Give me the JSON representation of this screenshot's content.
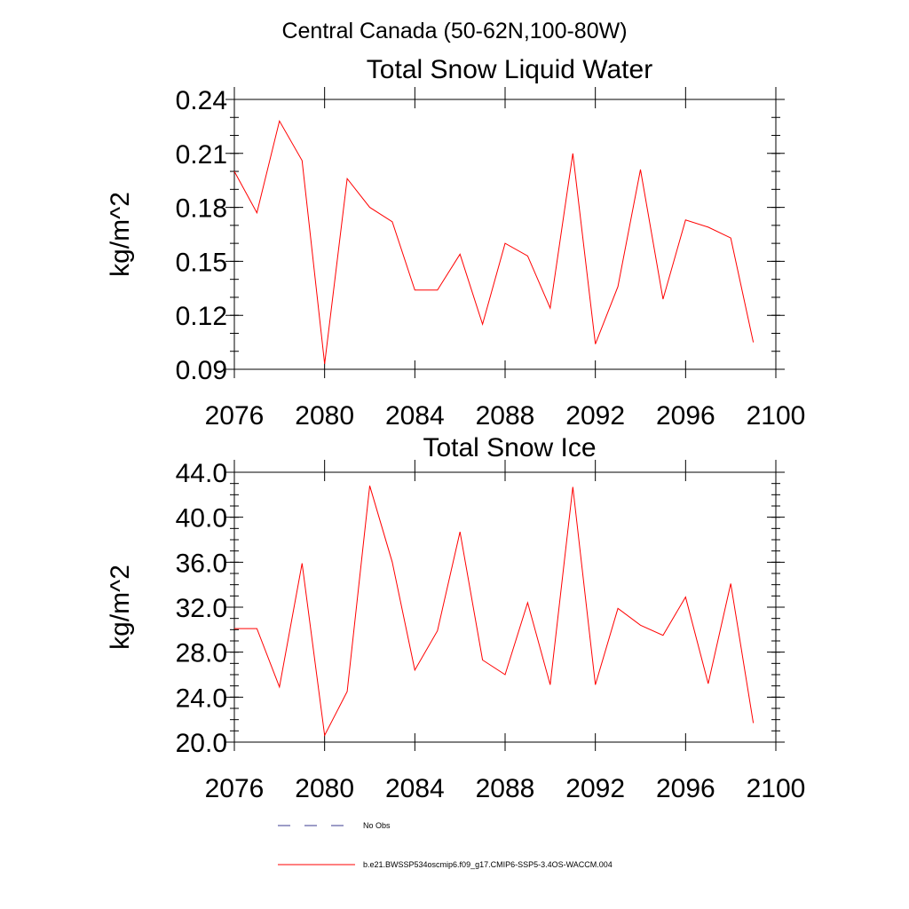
{
  "figure": {
    "title": "Central Canada (50-62N,100-80W)"
  },
  "legend": {
    "entries": [
      {
        "label": "No Obs",
        "style": "dashed",
        "color": "#3b3b8f"
      },
      {
        "label": "b.e21.BWSSP534oscmip6.f09_g17.CMIP6-SSP5-3.4OS-WACCM.004",
        "style": "solid",
        "color": "#ff0000"
      }
    ]
  },
  "chart_data": [
    {
      "type": "line",
      "title": "Total Snow Liquid Water",
      "xlabel": "",
      "ylabel": "kg/m^2",
      "xlim": [
        2076,
        2100
      ],
      "ylim": [
        0.09,
        0.24
      ],
      "xticks": [
        2076,
        2080,
        2084,
        2088,
        2092,
        2096,
        2100
      ],
      "xtick_labels": [
        "2076",
        "2080",
        "2084",
        "2088",
        "2092",
        "2096",
        "2100"
      ],
      "yticks": [
        0.09,
        0.12,
        0.15,
        0.18,
        0.21,
        0.24
      ],
      "ytick_labels": [
        "0.09",
        "0.12",
        "0.15",
        "0.18",
        "0.21",
        "0.24"
      ],
      "y_minor_step": 0.01,
      "grid": false,
      "series": [
        {
          "color": "#ff0000",
          "x": [
            2076,
            2077,
            2078,
            2079,
            2080,
            2081,
            2082,
            2083,
            2084,
            2085,
            2086,
            2087,
            2088,
            2089,
            2090,
            2091,
            2092,
            2093,
            2094,
            2095,
            2096,
            2097,
            2098,
            2099
          ],
          "y": [
            0.2,
            0.177,
            0.228,
            0.206,
            0.093,
            0.196,
            0.18,
            0.172,
            0.134,
            0.134,
            0.154,
            0.115,
            0.16,
            0.153,
            0.124,
            0.21,
            0.104,
            0.136,
            0.201,
            0.129,
            0.173,
            0.169,
            0.163,
            0.105
          ]
        }
      ]
    },
    {
      "type": "line",
      "title": "Total Snow Ice",
      "xlabel": "",
      "ylabel": "kg/m^2",
      "xlim": [
        2076,
        2100
      ],
      "ylim": [
        20.0,
        44.0
      ],
      "xticks": [
        2076,
        2080,
        2084,
        2088,
        2092,
        2096,
        2100
      ],
      "xtick_labels": [
        "2076",
        "2080",
        "2084",
        "2088",
        "2092",
        "2096",
        "2100"
      ],
      "yticks": [
        20.0,
        24.0,
        28.0,
        32.0,
        36.0,
        40.0,
        44.0
      ],
      "ytick_labels": [
        "20.0",
        "24.0",
        "28.0",
        "32.0",
        "36.0",
        "40.0",
        "44.0"
      ],
      "y_minor_step": 1.0,
      "grid": false,
      "series": [
        {
          "color": "#ff0000",
          "x": [
            2076,
            2077,
            2078,
            2079,
            2080,
            2081,
            2082,
            2083,
            2084,
            2085,
            2086,
            2087,
            2088,
            2089,
            2090,
            2091,
            2092,
            2093,
            2094,
            2095,
            2096,
            2097,
            2098,
            2099
          ],
          "y": [
            30.1,
            30.1,
            24.9,
            35.9,
            20.6,
            24.5,
            42.8,
            36.0,
            26.4,
            29.9,
            38.7,
            27.3,
            26.0,
            32.4,
            25.1,
            42.7,
            25.1,
            31.9,
            30.4,
            29.5,
            32.9,
            25.2,
            34.1,
            21.7
          ]
        }
      ]
    }
  ]
}
